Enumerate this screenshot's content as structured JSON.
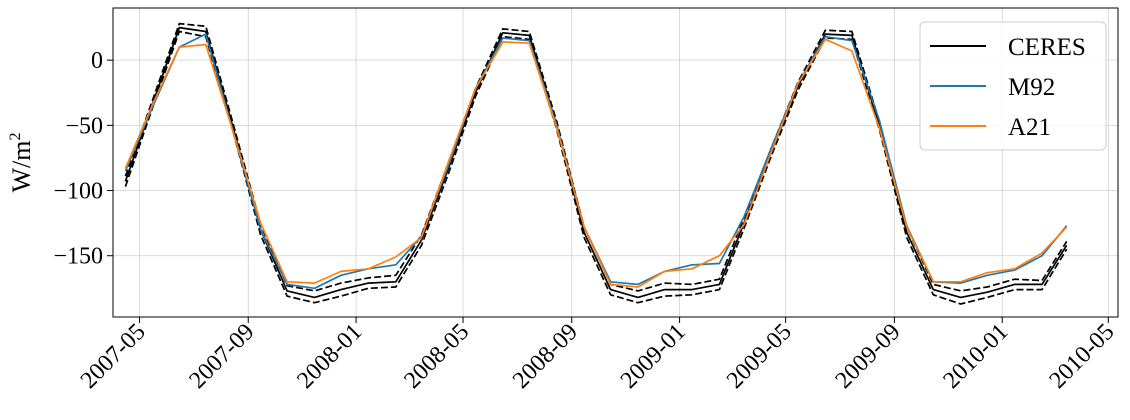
{
  "chart_data": {
    "type": "line",
    "title": "",
    "xlabel": "",
    "ylabel": "W/m",
    "ylabel_superscript": "2",
    "xlim": [
      "2007-04-01",
      "2010-05-12"
    ],
    "ylim": [
      -197,
      40
    ],
    "grid": true,
    "legend_placement": "top-right",
    "x_ticks": [
      "2007-05",
      "2007-09",
      "2008-01",
      "2008-05",
      "2008-09",
      "2009-01",
      "2009-05",
      "2009-09",
      "2010-01",
      "2010-05"
    ],
    "y_ticks": [
      0,
      -50,
      -100,
      -150
    ],
    "y_tick_labels": [
      "0",
      "−50",
      "−100",
      "−150"
    ],
    "x": [
      "2007-04-15",
      "2007-05-15",
      "2007-06-15",
      "2007-07-15",
      "2007-08-15",
      "2007-09-15",
      "2007-10-15",
      "2007-11-15",
      "2007-12-15",
      "2008-01-15",
      "2008-02-15",
      "2008-03-15",
      "2008-04-15",
      "2008-05-15",
      "2008-06-15",
      "2008-07-15",
      "2008-08-15",
      "2008-09-15",
      "2008-10-15",
      "2008-11-15",
      "2008-12-15",
      "2009-01-15",
      "2009-02-15",
      "2009-03-15",
      "2009-04-15",
      "2009-05-15",
      "2009-06-15",
      "2009-07-15",
      "2009-08-15",
      "2009-09-15",
      "2009-10-15",
      "2009-11-15",
      "2009-12-15",
      "2010-01-15",
      "2010-02-15",
      "2010-03-15"
    ],
    "series": [
      {
        "name": "CERES",
        "color": "#000000",
        "style": "solid",
        "values": [
          -93,
          -35,
          25,
          22,
          -52,
          -130,
          -177,
          -182,
          -176,
          -171,
          -170,
          -138,
          -82,
          -25,
          21,
          19,
          -50,
          -132,
          -176,
          -182,
          -176,
          -176,
          -172,
          -125,
          -70,
          -20,
          20,
          19,
          -50,
          -132,
          -176,
          -182,
          -178,
          -172,
          -172,
          -142
        ]
      },
      {
        "name": "",
        "color": "#000000",
        "style": "dashed",
        "values": [
          -89,
          -32,
          28,
          26,
          -49,
          -126,
          -173,
          -177,
          -171,
          -167,
          -165,
          -134,
          -78,
          -22,
          24,
          22,
          -47,
          -128,
          -172,
          -177,
          -171,
          -172,
          -168,
          -121,
          -67,
          -17,
          23,
          22,
          -47,
          -128,
          -172,
          -177,
          -174,
          -168,
          -169,
          -139
        ]
      },
      {
        "name": "",
        "color": "#000000",
        "style": "dashed",
        "values": [
          -97,
          -38,
          22,
          18,
          -55,
          -134,
          -181,
          -186,
          -181,
          -175,
          -174,
          -142,
          -86,
          -28,
          18,
          16,
          -53,
          -136,
          -180,
          -186,
          -181,
          -180,
          -176,
          -129,
          -73,
          -23,
          17,
          16,
          -53,
          -136,
          -180,
          -187,
          -182,
          -176,
          -176,
          -145
        ]
      },
      {
        "name": "M92",
        "color": "#1f77b4",
        "style": "solid",
        "values": [
          -85,
          -37,
          10,
          20,
          -55,
          -130,
          -172,
          -175,
          -165,
          -160,
          -157,
          -135,
          -80,
          -22,
          17,
          15,
          -50,
          -128,
          -170,
          -172,
          -162,
          -157,
          -156,
          -120,
          -67,
          -18,
          18,
          15,
          -46,
          -127,
          -170,
          -171,
          -165,
          -161,
          -150,
          -127
        ]
      },
      {
        "name": "A21",
        "color": "#ff7f0e",
        "style": "solid",
        "values": [
          -83,
          -35,
          10,
          12,
          -55,
          -125,
          -170,
          -171,
          -162,
          -160,
          -151,
          -136,
          -77,
          -22,
          14,
          13,
          -52,
          -128,
          -172,
          -174,
          -162,
          -160,
          -150,
          -126,
          -70,
          -18,
          16,
          7,
          -52,
          -128,
          -170,
          -170,
          -163,
          -160,
          -148,
          -128
        ]
      }
    ]
  }
}
